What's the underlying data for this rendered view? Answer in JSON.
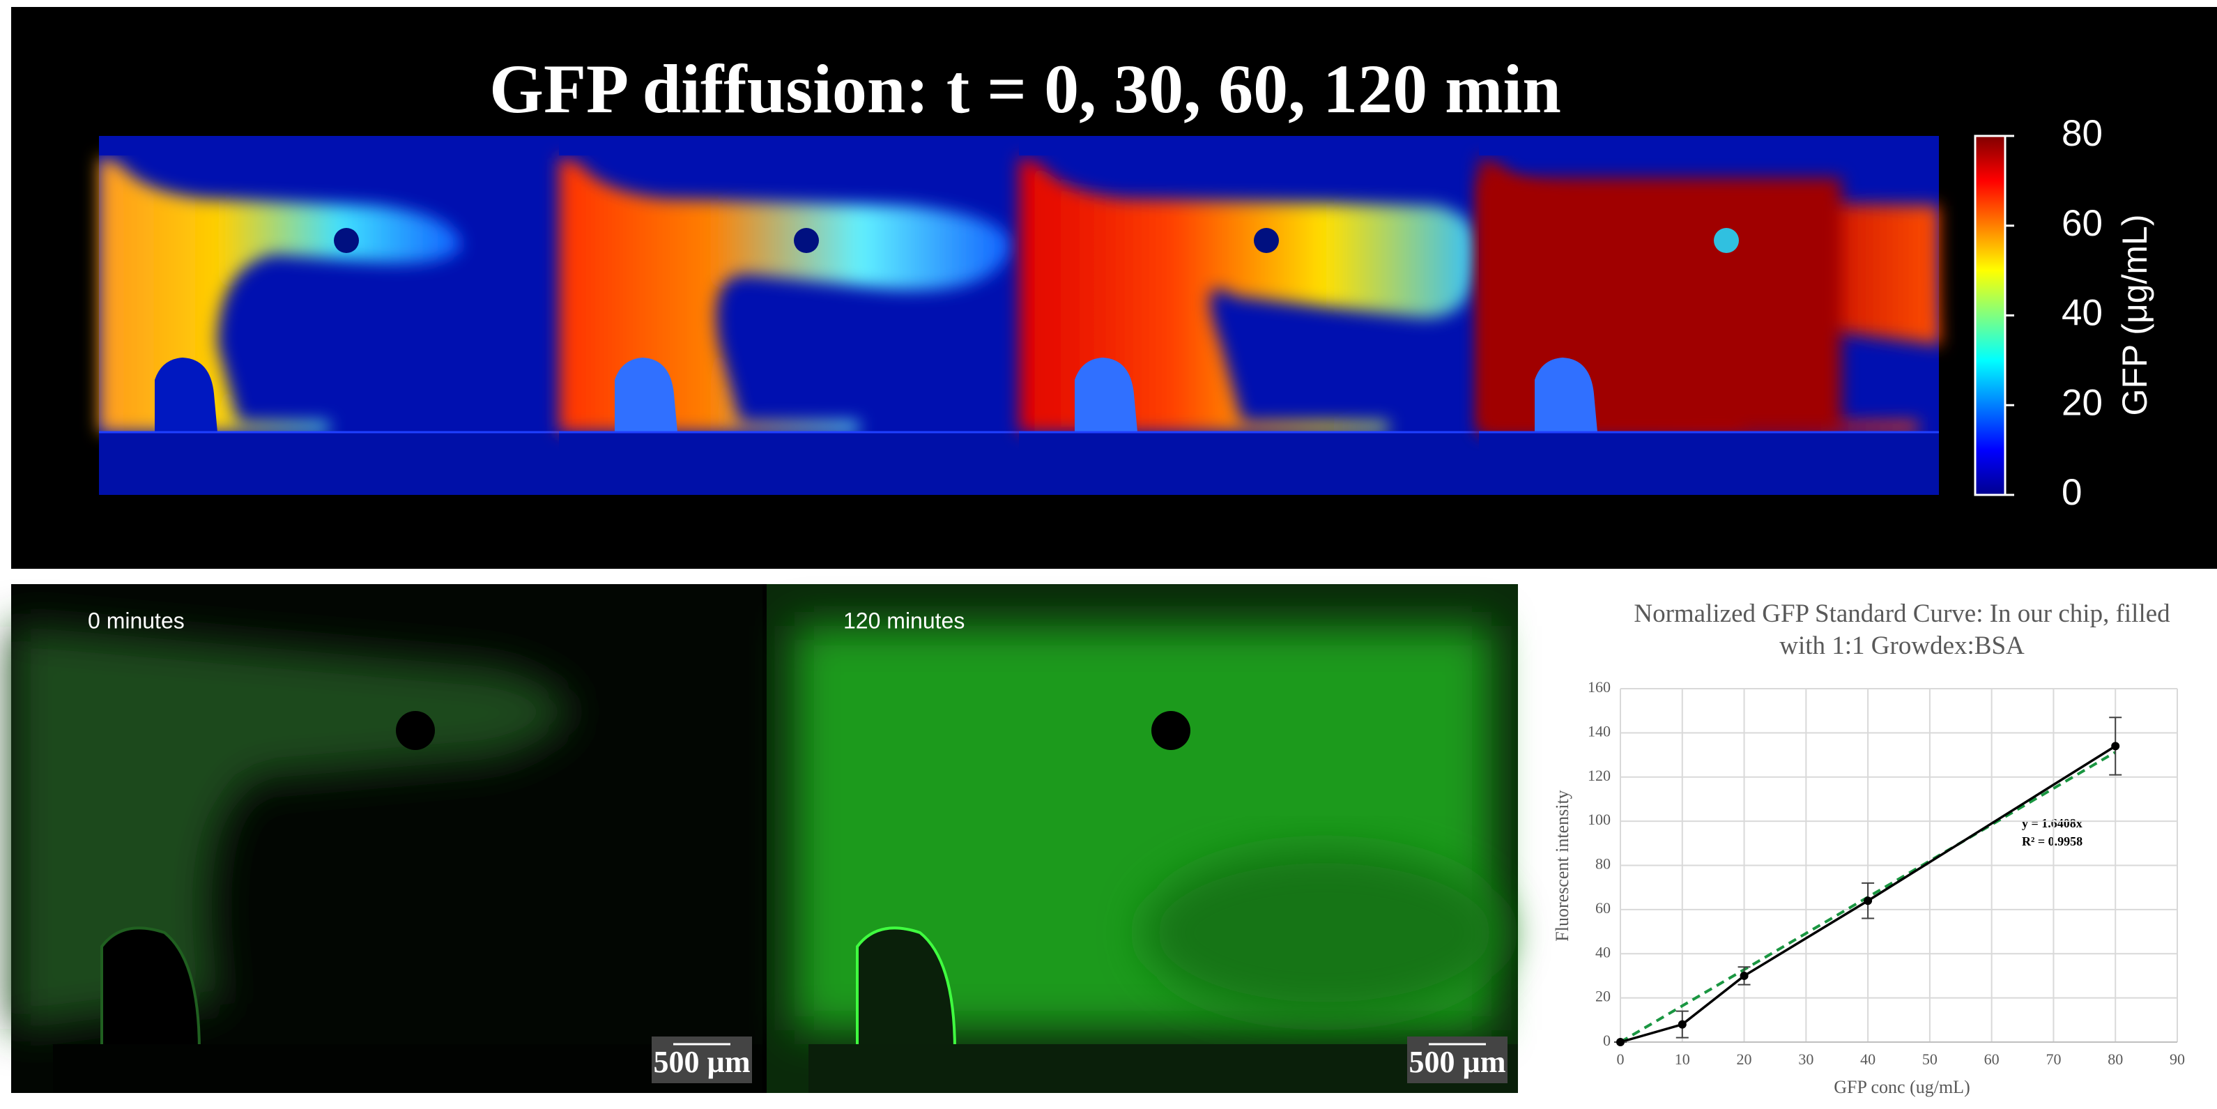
{
  "figure": {
    "title": "GFP diffusion: t = 0, 30, 60, 120 min",
    "colorbar": {
      "label": "GFP (μg/mL)",
      "lim": [
        0,
        80
      ],
      "ticks": [
        0,
        20,
        40,
        60,
        80
      ]
    },
    "images": [
      {
        "label": "0 minutes",
        "scale_bar": "500 µm"
      },
      {
        "label": "120 minutes",
        "scale_bar": "500 µm"
      }
    ]
  },
  "chart_data": {
    "type": "line",
    "title": "Normalized GFP Standard Curve: In our chip, filled with 1:1 Growdex:BSA",
    "x_label": "GFP conc (ug/mL)",
    "y_label": "Fluorescent intensity",
    "x": [
      0,
      10,
      20,
      40,
      80
    ],
    "series": [
      {
        "color": "#000000",
        "values": [
          0,
          8,
          30,
          64,
          134
        ],
        "errors": [
          0,
          6,
          4,
          8,
          13
        ]
      }
    ],
    "trendline": {
      "slope": 1.6408,
      "color": "#1a9641"
    },
    "annotations": [
      "y = 1.6408x",
      "R² = 0.9958"
    ],
    "xlim": [
      0,
      90
    ],
    "xticks": [
      0,
      10,
      20,
      30,
      40,
      50,
      60,
      70,
      80,
      90
    ],
    "ylim": [
      0,
      160
    ],
    "yticks": [
      0,
      20,
      40,
      60,
      80,
      100,
      120,
      140,
      160
    ],
    "grid": true
  }
}
